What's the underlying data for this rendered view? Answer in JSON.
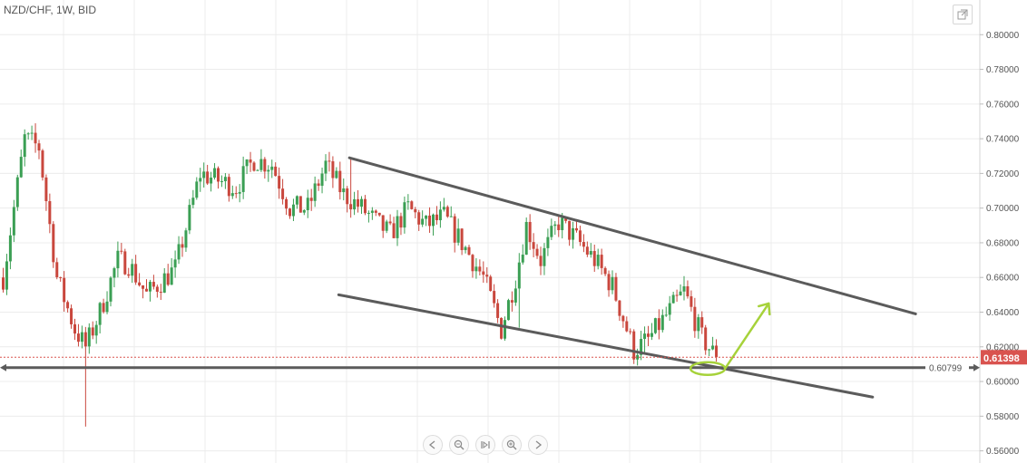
{
  "header": {
    "symbol": "NZD/CHF, 1W, BID"
  },
  "toolbar": {
    "expand_icon": "expand-icon",
    "nav_icons": [
      "scroll-left-icon",
      "zoom-out-icon",
      "reset-icon",
      "zoom-in-icon",
      "scroll-right-icon"
    ]
  },
  "colors": {
    "up": "#3b9f54",
    "down": "#c9473d",
    "trendline": "#5b5b5b",
    "annotation": "#a6d23a",
    "last_price_bg": "#d9534f",
    "grid": "#ececec"
  },
  "chart_data": {
    "type": "candlestick",
    "symbol": "NZD/CHF",
    "interval": "1W",
    "price_type": "BID",
    "ylim": [
      0.553,
      0.82
    ],
    "y_ticks": [
      "0.80000",
      "0.78000",
      "0.76000",
      "0.74000",
      "0.72000",
      "0.70000",
      "0.68000",
      "0.66000",
      "0.64000",
      "0.62000",
      "0.60000",
      "0.58000",
      "0.56000"
    ],
    "last_price": "0.61398",
    "horizontal_level": "0.60799",
    "grid": true,
    "candle_count": 200,
    "price_path": [
      [
        0,
        0.66
      ],
      [
        6,
        0.74
      ],
      [
        10,
        0.735
      ],
      [
        15,
        0.66
      ],
      [
        20,
        0.63
      ],
      [
        23,
        0.62
      ],
      [
        27,
        0.64
      ],
      [
        32,
        0.67
      ],
      [
        35,
        0.668
      ],
      [
        40,
        0.65
      ],
      [
        48,
        0.665
      ],
      [
        55,
        0.72
      ],
      [
        65,
        0.712
      ],
      [
        70,
        0.728
      ],
      [
        75,
        0.725
      ],
      [
        80,
        0.7
      ],
      [
        85,
        0.7
      ],
      [
        90,
        0.725
      ],
      [
        95,
        0.708
      ],
      [
        100,
        0.7
      ],
      [
        105,
        0.69
      ],
      [
        108,
        0.685
      ],
      [
        113,
        0.7
      ],
      [
        118,
        0.69
      ],
      [
        123,
        0.695
      ],
      [
        128,
        0.68
      ],
      [
        134,
        0.66
      ],
      [
        139,
        0.63
      ],
      [
        143,
        0.66
      ],
      [
        146,
        0.69
      ],
      [
        150,
        0.67
      ],
      [
        155,
        0.692
      ],
      [
        160,
        0.682
      ],
      [
        165,
        0.67
      ],
      [
        170,
        0.655
      ],
      [
        176,
        0.618
      ],
      [
        180,
        0.624
      ],
      [
        185,
        0.638
      ],
      [
        190,
        0.652
      ],
      [
        195,
        0.625
      ],
      [
        199,
        0.614
      ]
    ],
    "trendlines": [
      {
        "name": "upper",
        "from": [
          97,
          0.729
        ],
        "to": [
          255,
          0.639
        ]
      },
      {
        "name": "lower",
        "from": [
          94,
          0.65
        ],
        "to": [
          243,
          0.591
        ]
      },
      {
        "name": "support",
        "from": [
          0,
          0.608
        ],
        "to": [
          270,
          0.608
        ]
      }
    ],
    "annotation": {
      "ellipse_at": [
        197,
        0.6075
      ],
      "arrow_from": [
        202,
        0.608
      ],
      "arrow_to": [
        214,
        0.645
      ]
    }
  }
}
